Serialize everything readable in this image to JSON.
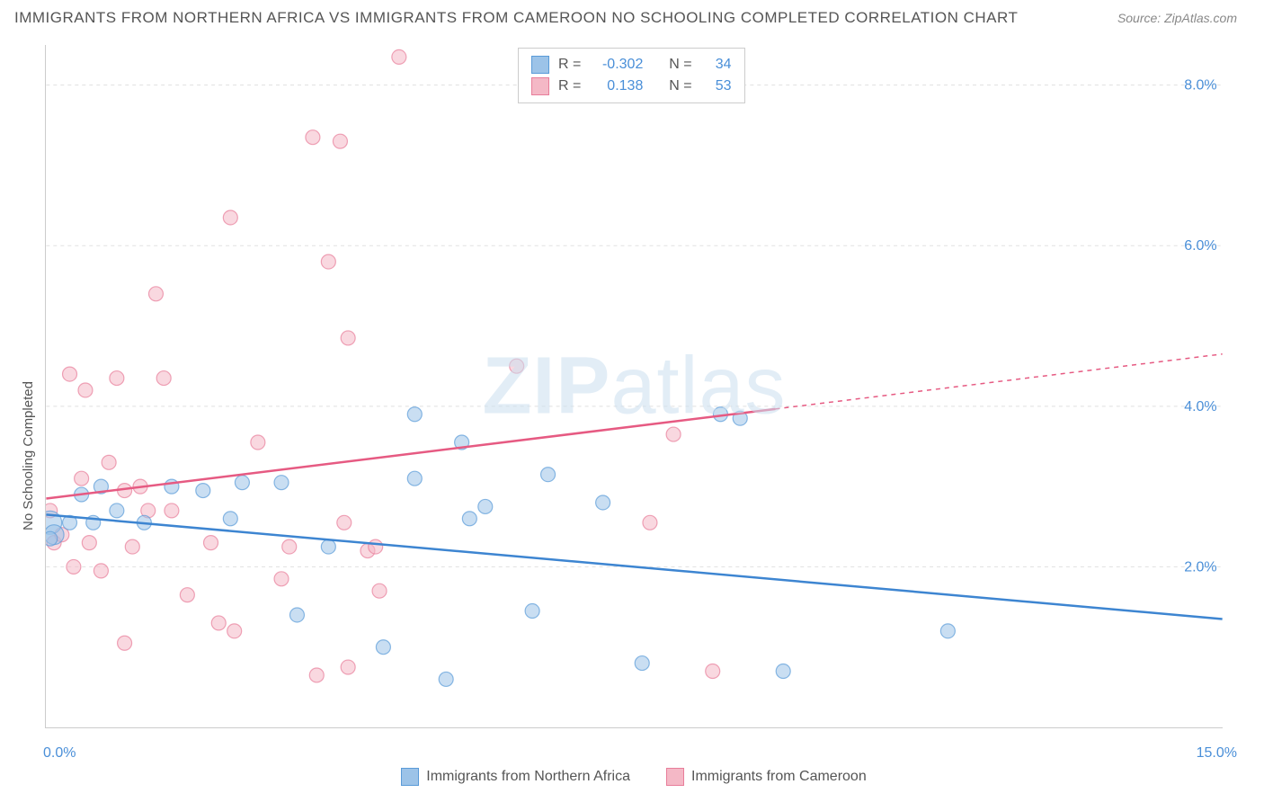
{
  "title": "IMMIGRANTS FROM NORTHERN AFRICA VS IMMIGRANTS FROM CAMEROON NO SCHOOLING COMPLETED CORRELATION CHART",
  "source": "Source: ZipAtlas.com",
  "ylabel": "No Schooling Completed",
  "watermark_a": "ZIP",
  "watermark_b": "atlas",
  "axis": {
    "x_min_label": "0.0%",
    "x_max_label": "15.0%",
    "y_labels": [
      "2.0%",
      "4.0%",
      "6.0%",
      "8.0%"
    ],
    "xlim": [
      0,
      15
    ],
    "ylim": [
      0,
      8.5
    ],
    "y_ticks": [
      2,
      4,
      6,
      8
    ],
    "x_ticks": [
      0,
      1.5,
      3.0,
      4.5,
      6.0,
      7.5,
      9.0,
      10.5
    ],
    "grid_color": "#e0e0e0",
    "axis_label_color": "#4a8fd8",
    "border_color": "#cccccc"
  },
  "series": [
    {
      "name": "Immigrants from Northern Africa",
      "fill": "#9cc3e8",
      "stroke": "#5a9bd8",
      "line_color": "#3d85d1",
      "r_label": "R =",
      "r_value": "-0.302",
      "n_label": "N =",
      "n_value": "34",
      "trend": {
        "x1": 0,
        "y1": 2.65,
        "x2": 15,
        "y2": 1.35,
        "dash_from_x": 15
      },
      "points": [
        {
          "x": 0.05,
          "y": 2.55,
          "r": 13
        },
        {
          "x": 0.1,
          "y": 2.4,
          "r": 11
        },
        {
          "x": 0.05,
          "y": 2.35,
          "r": 8
        },
        {
          "x": 0.3,
          "y": 2.55,
          "r": 8
        },
        {
          "x": 0.45,
          "y": 2.9,
          "r": 8
        },
        {
          "x": 0.6,
          "y": 2.55,
          "r": 8
        },
        {
          "x": 0.7,
          "y": 3.0,
          "r": 8
        },
        {
          "x": 0.9,
          "y": 2.7,
          "r": 8
        },
        {
          "x": 1.25,
          "y": 2.55,
          "r": 8
        },
        {
          "x": 1.6,
          "y": 3.0,
          "r": 8
        },
        {
          "x": 2.0,
          "y": 2.95,
          "r": 8
        },
        {
          "x": 2.35,
          "y": 2.6,
          "r": 8
        },
        {
          "x": 2.5,
          "y": 3.05,
          "r": 8
        },
        {
          "x": 3.0,
          "y": 3.05,
          "r": 8
        },
        {
          "x": 3.2,
          "y": 1.4,
          "r": 8
        },
        {
          "x": 3.6,
          "y": 2.25,
          "r": 8
        },
        {
          "x": 4.3,
          "y": 1.0,
          "r": 8
        },
        {
          "x": 4.7,
          "y": 3.9,
          "r": 8
        },
        {
          "x": 4.7,
          "y": 3.1,
          "r": 8
        },
        {
          "x": 5.1,
          "y": 0.6,
          "r": 8
        },
        {
          "x": 5.3,
          "y": 3.55,
          "r": 8
        },
        {
          "x": 5.4,
          "y": 2.6,
          "r": 8
        },
        {
          "x": 5.6,
          "y": 2.75,
          "r": 8
        },
        {
          "x": 6.2,
          "y": 1.45,
          "r": 8
        },
        {
          "x": 6.4,
          "y": 3.15,
          "r": 8
        },
        {
          "x": 7.1,
          "y": 2.8,
          "r": 8
        },
        {
          "x": 7.6,
          "y": 0.8,
          "r": 8
        },
        {
          "x": 8.6,
          "y": 3.9,
          "r": 8
        },
        {
          "x": 8.85,
          "y": 3.85,
          "r": 8
        },
        {
          "x": 9.4,
          "y": 0.7,
          "r": 8
        },
        {
          "x": 11.5,
          "y": 1.2,
          "r": 8
        }
      ]
    },
    {
      "name": "Immigrants from Cameroon",
      "fill": "#f4b8c6",
      "stroke": "#e87d9a",
      "line_color": "#e65a82",
      "r_label": "R =",
      "r_value": "0.138",
      "n_label": "N =",
      "n_value": "53",
      "trend": {
        "x1": 0,
        "y1": 2.85,
        "x2": 15,
        "y2": 4.65,
        "dash_from_x": 9.3
      },
      "points": [
        {
          "x": 0.05,
          "y": 2.7,
          "r": 8
        },
        {
          "x": 0.1,
          "y": 2.3,
          "r": 8
        },
        {
          "x": 0.2,
          "y": 2.4,
          "r": 8
        },
        {
          "x": 0.3,
          "y": 4.4,
          "r": 8
        },
        {
          "x": 0.35,
          "y": 2.0,
          "r": 8
        },
        {
          "x": 0.45,
          "y": 3.1,
          "r": 8
        },
        {
          "x": 0.5,
          "y": 4.2,
          "r": 8
        },
        {
          "x": 0.55,
          "y": 2.3,
          "r": 8
        },
        {
          "x": 0.7,
          "y": 1.95,
          "r": 8
        },
        {
          "x": 0.8,
          "y": 3.3,
          "r": 8
        },
        {
          "x": 0.9,
          "y": 4.35,
          "r": 8
        },
        {
          "x": 1.0,
          "y": 2.95,
          "r": 8
        },
        {
          "x": 1.0,
          "y": 1.05,
          "r": 8
        },
        {
          "x": 1.1,
          "y": 2.25,
          "r": 8
        },
        {
          "x": 1.2,
          "y": 3.0,
          "r": 8
        },
        {
          "x": 1.3,
          "y": 2.7,
          "r": 8
        },
        {
          "x": 1.4,
          "y": 5.4,
          "r": 8
        },
        {
          "x": 1.5,
          "y": 4.35,
          "r": 8
        },
        {
          "x": 1.6,
          "y": 2.7,
          "r": 8
        },
        {
          "x": 1.8,
          "y": 1.65,
          "r": 8
        },
        {
          "x": 2.1,
          "y": 2.3,
          "r": 8
        },
        {
          "x": 2.2,
          "y": 1.3,
          "r": 8
        },
        {
          "x": 2.35,
          "y": 6.35,
          "r": 8
        },
        {
          "x": 2.4,
          "y": 1.2,
          "r": 8
        },
        {
          "x": 2.7,
          "y": 3.55,
          "r": 8
        },
        {
          "x": 3.0,
          "y": 1.85,
          "r": 8
        },
        {
          "x": 3.1,
          "y": 2.25,
          "r": 8
        },
        {
          "x": 3.4,
          "y": 7.35,
          "r": 8
        },
        {
          "x": 3.45,
          "y": 0.65,
          "r": 8
        },
        {
          "x": 3.6,
          "y": 5.8,
          "r": 8
        },
        {
          "x": 3.75,
          "y": 7.3,
          "r": 8
        },
        {
          "x": 3.8,
          "y": 2.55,
          "r": 8
        },
        {
          "x": 3.85,
          "y": 0.75,
          "r": 8
        },
        {
          "x": 3.85,
          "y": 4.85,
          "r": 8
        },
        {
          "x": 4.1,
          "y": 2.2,
          "r": 8
        },
        {
          "x": 4.2,
          "y": 2.25,
          "r": 8
        },
        {
          "x": 4.25,
          "y": 1.7,
          "r": 8
        },
        {
          "x": 4.5,
          "y": 8.35,
          "r": 8
        },
        {
          "x": 6.0,
          "y": 4.5,
          "r": 8
        },
        {
          "x": 7.7,
          "y": 2.55,
          "r": 8
        },
        {
          "x": 8.0,
          "y": 3.65,
          "r": 8
        },
        {
          "x": 8.5,
          "y": 0.7,
          "r": 8
        }
      ]
    }
  ],
  "styling": {
    "background": "#ffffff",
    "title_color": "#555555",
    "title_fontsize": 17,
    "source_color": "#888888",
    "marker_radius_default": 8,
    "marker_opacity": 0.55,
    "line_width": 2.5,
    "watermark_color": "#cce0f0"
  }
}
